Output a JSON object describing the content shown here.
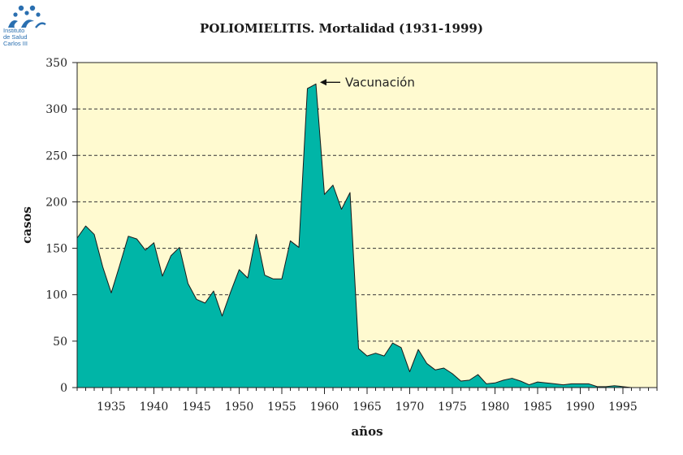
{
  "logo": {
    "lines": [
      "Instituto",
      "de Salud",
      "Carlos III"
    ],
    "color": "#2a6fb0"
  },
  "chart_data": {
    "type": "area",
    "title": "POLIOMIELITIS. Mortalidad (1931-1999)",
    "xlabel": "años",
    "ylabel": "casos",
    "xlim": [
      1931,
      1999
    ],
    "ylim": [
      0,
      350
    ],
    "yticks": [
      0,
      50,
      100,
      150,
      200,
      250,
      300,
      350
    ],
    "xticks": [
      1935,
      1940,
      1945,
      1950,
      1955,
      1960,
      1965,
      1970,
      1975,
      1980,
      1985,
      1990,
      1995
    ],
    "grid": true,
    "fill_color": "#00b5a7",
    "background_color": "#fffad0",
    "x": [
      1931,
      1932,
      1933,
      1934,
      1935,
      1936,
      1937,
      1938,
      1939,
      1940,
      1941,
      1942,
      1943,
      1944,
      1945,
      1946,
      1947,
      1948,
      1949,
      1950,
      1951,
      1952,
      1953,
      1954,
      1955,
      1956,
      1957,
      1958,
      1959,
      1960,
      1961,
      1962,
      1963,
      1964,
      1965,
      1966,
      1967,
      1968,
      1969,
      1970,
      1971,
      1972,
      1973,
      1974,
      1975,
      1976,
      1977,
      1978,
      1979,
      1980,
      1981,
      1982,
      1983,
      1984,
      1985,
      1986,
      1987,
      1988,
      1989,
      1990,
      1991,
      1992,
      1993,
      1994,
      1995,
      1996,
      1997,
      1998,
      1999
    ],
    "values": [
      161,
      174,
      165,
      130,
      102,
      132,
      163,
      160,
      148,
      156,
      120,
      142,
      151,
      112,
      95,
      91,
      104,
      77,
      103,
      127,
      118,
      165,
      121,
      117,
      117,
      158,
      151,
      322,
      327,
      208,
      218,
      192,
      210,
      42,
      34,
      37,
      34,
      48,
      43,
      17,
      41,
      26,
      19,
      21,
      15,
      7,
      8,
      14,
      4,
      5,
      8,
      10,
      7,
      3,
      6,
      5,
      4,
      3,
      4,
      4,
      4,
      1,
      1,
      2,
      1,
      0,
      0,
      0,
      0
    ],
    "annotation": {
      "text": "Vacunación",
      "x": 1959,
      "y": 327
    }
  }
}
